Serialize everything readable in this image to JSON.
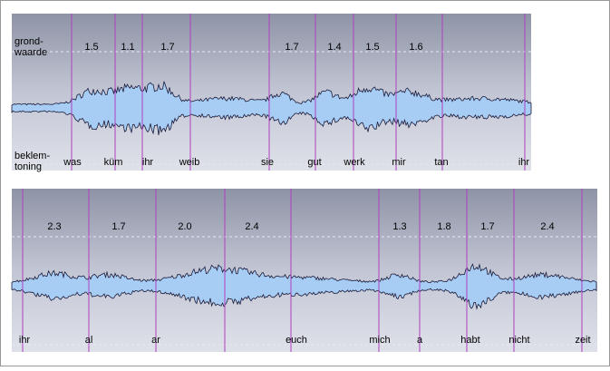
{
  "panels": [
    {
      "label_top": [
        "grond-",
        "waarde"
      ],
      "label_bottom": [
        "beklem-",
        "toning"
      ],
      "values": [
        "1.5",
        "1.1",
        "1.7",
        "1.7",
        "1.4",
        "1.5",
        "1.6"
      ],
      "words": [
        "was",
        "küm",
        "ihr",
        "weib",
        "sie",
        "gut",
        "werk",
        "mir",
        "tan",
        "ihr"
      ]
    },
    {
      "values": [
        "2.3",
        "1.7",
        "2.0",
        "2.4",
        "1.3",
        "1.8",
        "1.7",
        "2.4"
      ],
      "words": [
        "ihr",
        "al",
        "ar",
        "euch",
        "mich",
        "a",
        "habt",
        "nicht",
        "zeit"
      ]
    }
  ]
}
